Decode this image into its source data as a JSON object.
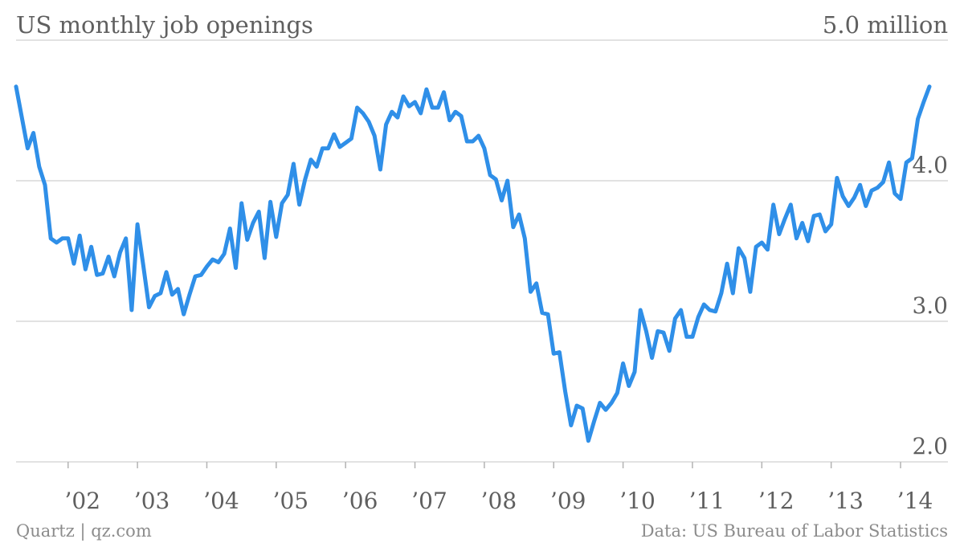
{
  "header": {
    "title": "US monthly job openings",
    "unit_label": "5.0 million"
  },
  "footer": {
    "source_left": "Quartz | qz.com",
    "source_right": "Data: US Bureau of Labor Statistics"
  },
  "colors": {
    "line": "#2f8fe8",
    "grid": "#d9d9d9",
    "text": "#5f5f5f",
    "footer": "#8c8c8c"
  },
  "chart_data": {
    "type": "line",
    "title": "US monthly job openings",
    "ylabel": "",
    "xlabel": "",
    "unit": "million",
    "ylim": [
      2.0,
      5.0
    ],
    "y_ticks": [
      {
        "value": 5.0,
        "label": "5.0 million"
      },
      {
        "value": 4.0,
        "label": "4.0"
      },
      {
        "value": 3.0,
        "label": "3.0"
      },
      {
        "value": 2.0,
        "label": "2.0"
      }
    ],
    "x_ticks": [
      {
        "value": "2002-01",
        "label": "’02"
      },
      {
        "value": "2003-01",
        "label": "’03"
      },
      {
        "value": "2004-01",
        "label": "’04"
      },
      {
        "value": "2005-01",
        "label": "’05"
      },
      {
        "value": "2006-01",
        "label": "’06"
      },
      {
        "value": "2007-01",
        "label": "’07"
      },
      {
        "value": "2008-01",
        "label": "’08"
      },
      {
        "value": "2009-01",
        "label": "’09"
      },
      {
        "value": "2010-01",
        "label": "’10"
      },
      {
        "value": "2011-01",
        "label": "’11"
      },
      {
        "value": "2012-01",
        "label": "’12"
      },
      {
        "value": "2013-01",
        "label": "’13"
      },
      {
        "value": "2014-01",
        "label": "’14"
      }
    ],
    "grid": true,
    "legend": "none",
    "series": [
      {
        "x": [
          "2001-04",
          "2001-05",
          "2001-06",
          "2001-07",
          "2001-08",
          "2001-09",
          "2001-10",
          "2001-11",
          "2001-12",
          "2002-01",
          "2002-02",
          "2002-03",
          "2002-04",
          "2002-05",
          "2002-06",
          "2002-07",
          "2002-08",
          "2002-09",
          "2002-10",
          "2002-11",
          "2002-12",
          "2003-01",
          "2003-02",
          "2003-03",
          "2003-04",
          "2003-05",
          "2003-06",
          "2003-07",
          "2003-08",
          "2003-09",
          "2003-10",
          "2003-11",
          "2003-12",
          "2004-01",
          "2004-02",
          "2004-03",
          "2004-04",
          "2004-05",
          "2004-06",
          "2004-07",
          "2004-08",
          "2004-09",
          "2004-10",
          "2004-11",
          "2004-12",
          "2005-01",
          "2005-02",
          "2005-03",
          "2005-04",
          "2005-05",
          "2005-06",
          "2005-07",
          "2005-08",
          "2005-09",
          "2005-10",
          "2005-11",
          "2005-12",
          "2006-01",
          "2006-02",
          "2006-03",
          "2006-04",
          "2006-05",
          "2006-06",
          "2006-07",
          "2006-08",
          "2006-09",
          "2006-10",
          "2006-11",
          "2006-12",
          "2007-01",
          "2007-02",
          "2007-03",
          "2007-04",
          "2007-05",
          "2007-06",
          "2007-07",
          "2007-08",
          "2007-09",
          "2007-10",
          "2007-11",
          "2007-12",
          "2008-01",
          "2008-02",
          "2008-03",
          "2008-04",
          "2008-05",
          "2008-06",
          "2008-07",
          "2008-08",
          "2008-09",
          "2008-10",
          "2008-11",
          "2008-12",
          "2009-01",
          "2009-02",
          "2009-03",
          "2009-04",
          "2009-05",
          "2009-06",
          "2009-07",
          "2009-08",
          "2009-09",
          "2009-10",
          "2009-11",
          "2009-12",
          "2010-01",
          "2010-02",
          "2010-03",
          "2010-04",
          "2010-05",
          "2010-06",
          "2010-07",
          "2010-08",
          "2010-09",
          "2010-10",
          "2010-11",
          "2010-12",
          "2011-01",
          "2011-02",
          "2011-03",
          "2011-04",
          "2011-05",
          "2011-06",
          "2011-07",
          "2011-08",
          "2011-09",
          "2011-10",
          "2011-11",
          "2011-12",
          "2012-01",
          "2012-02",
          "2012-03",
          "2012-04",
          "2012-05",
          "2012-06",
          "2012-07",
          "2012-08",
          "2012-09",
          "2012-10",
          "2012-11",
          "2012-12",
          "2013-01",
          "2013-02",
          "2013-03",
          "2013-04",
          "2013-05",
          "2013-06",
          "2013-07",
          "2013-08",
          "2013-09",
          "2013-10",
          "2013-11",
          "2013-12",
          "2014-01",
          "2014-02",
          "2014-03",
          "2014-04",
          "2014-05",
          "2014-06"
        ],
        "values": [
          4.67,
          4.45,
          4.23,
          4.34,
          4.1,
          3.97,
          3.59,
          3.56,
          3.59,
          3.59,
          3.41,
          3.61,
          3.37,
          3.53,
          3.33,
          3.34,
          3.46,
          3.32,
          3.49,
          3.59,
          3.08,
          3.69,
          3.4,
          3.1,
          3.18,
          3.2,
          3.35,
          3.19,
          3.23,
          3.05,
          3.19,
          3.32,
          3.33,
          3.39,
          3.44,
          3.42,
          3.48,
          3.66,
          3.38,
          3.84,
          3.58,
          3.7,
          3.78,
          3.45,
          3.85,
          3.6,
          3.84,
          3.9,
          4.12,
          3.83,
          4.01,
          4.15,
          4.1,
          4.23,
          4.23,
          4.33,
          4.24,
          4.27,
          4.3,
          4.52,
          4.48,
          4.42,
          4.32,
          4.08,
          4.4,
          4.49,
          4.45,
          4.6,
          4.53,
          4.56,
          4.48,
          4.65,
          4.52,
          4.52,
          4.63,
          4.43,
          4.49,
          4.46,
          4.28,
          4.28,
          4.32,
          4.23,
          4.04,
          4.01,
          3.86,
          4.0,
          3.67,
          3.76,
          3.59,
          3.21,
          3.27,
          3.06,
          3.05,
          2.77,
          2.78,
          2.5,
          2.26,
          2.4,
          2.38,
          2.15,
          2.29,
          2.42,
          2.37,
          2.42,
          2.49,
          2.7,
          2.54,
          2.64,
          3.08,
          2.93,
          2.74,
          2.93,
          2.92,
          2.79,
          3.02,
          3.08,
          2.89,
          2.89,
          3.03,
          3.12,
          3.08,
          3.07,
          3.2,
          3.41,
          3.2,
          3.52,
          3.45,
          3.21,
          3.53,
          3.56,
          3.51,
          3.83,
          3.62,
          3.73,
          3.83,
          3.59,
          3.7,
          3.57,
          3.75,
          3.76,
          3.64,
          3.69,
          4.02,
          3.89,
          3.82,
          3.88,
          3.97,
          3.82,
          3.93,
          3.95,
          3.99,
          4.13,
          3.91,
          3.87,
          4.13,
          4.16,
          4.44,
          4.56,
          4.67
        ]
      }
    ]
  }
}
